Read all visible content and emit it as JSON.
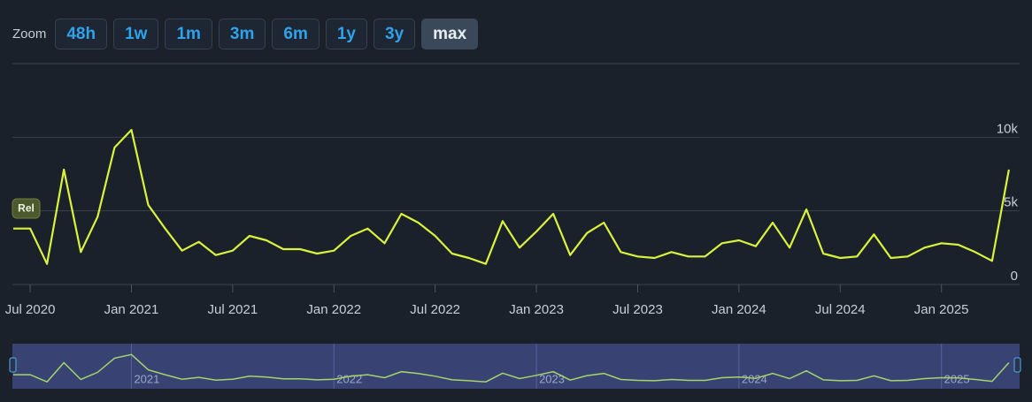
{
  "zoom": {
    "label": "Zoom",
    "buttons": [
      "48h",
      "1w",
      "1m",
      "3m",
      "6m",
      "1y",
      "3y",
      "max"
    ],
    "selected": 7
  },
  "chart_data": {
    "type": "line",
    "annotation": "Rel",
    "x": [
      "2020-06",
      "2020-07",
      "2020-08",
      "2020-09",
      "2020-10",
      "2020-11",
      "2020-12",
      "2021-01",
      "2021-02",
      "2021-03",
      "2021-04",
      "2021-05",
      "2021-06",
      "2021-07",
      "2021-08",
      "2021-09",
      "2021-10",
      "2021-11",
      "2021-12",
      "2022-01",
      "2022-02",
      "2022-03",
      "2022-04",
      "2022-05",
      "2022-06",
      "2022-07",
      "2022-08",
      "2022-09",
      "2022-10",
      "2022-11",
      "2022-12",
      "2023-01",
      "2023-02",
      "2023-03",
      "2023-04",
      "2023-05",
      "2023-06",
      "2023-07",
      "2023-08",
      "2023-09",
      "2023-10",
      "2023-11",
      "2023-12",
      "2024-01",
      "2024-02",
      "2024-03",
      "2024-04",
      "2024-05",
      "2024-06",
      "2024-07",
      "2024-08",
      "2024-09",
      "2024-10",
      "2024-11",
      "2024-12",
      "2025-01",
      "2025-02",
      "2025-03",
      "2025-04",
      "2025-05"
    ],
    "series": [
      {
        "color": "#d9f23e",
        "values": [
          3800,
          3800,
          1400,
          7800,
          2200,
          4600,
          9300,
          10500,
          5400,
          3800,
          2300,
          2900,
          2000,
          2300,
          3300,
          3000,
          2400,
          2400,
          2100,
          2300,
          3300,
          3800,
          2800,
          4800,
          4200,
          3300,
          2100,
          1800,
          1400,
          4300,
          2500,
          3600,
          4800,
          2000,
          3500,
          4200,
          2200,
          1900,
          1800,
          2200,
          1900,
          1900,
          2800,
          3000,
          2600,
          4200,
          2500,
          5100,
          2100,
          1800,
          1900,
          3400,
          1800,
          1900,
          2500,
          2800,
          2700,
          2200,
          1600,
          7800
        ]
      }
    ],
    "xlim": [
      "2020-06",
      "2025-06"
    ],
    "xticks": [
      {
        "value": "2020-07",
        "label": "Jul 2020"
      },
      {
        "value": "2021-01",
        "label": "Jan 2021"
      },
      {
        "value": "2021-07",
        "label": "Jul 2021"
      },
      {
        "value": "2022-01",
        "label": "Jan 2022"
      },
      {
        "value": "2022-07",
        "label": "Jul 2022"
      },
      {
        "value": "2023-01",
        "label": "Jan 2023"
      },
      {
        "value": "2023-07",
        "label": "Jul 2023"
      },
      {
        "value": "2024-01",
        "label": "Jan 2024"
      },
      {
        "value": "2024-07",
        "label": "Jul 2024"
      },
      {
        "value": "2025-01",
        "label": "Jan 2025"
      }
    ],
    "ylim": [
      0,
      15000
    ],
    "yticks": [
      0,
      {
        "value": 5000,
        "label": "5k"
      },
      {
        "value": 10000,
        "label": "10k"
      }
    ],
    "grid": true,
    "navigator_ticks": [
      {
        "value": "2021-01",
        "label": "2021"
      },
      {
        "value": "2022-01",
        "label": "2022"
      },
      {
        "value": "2023-01",
        "label": "2023"
      },
      {
        "value": "2024-01",
        "label": "2024"
      },
      {
        "value": "2025-01",
        "label": "2025"
      }
    ]
  }
}
